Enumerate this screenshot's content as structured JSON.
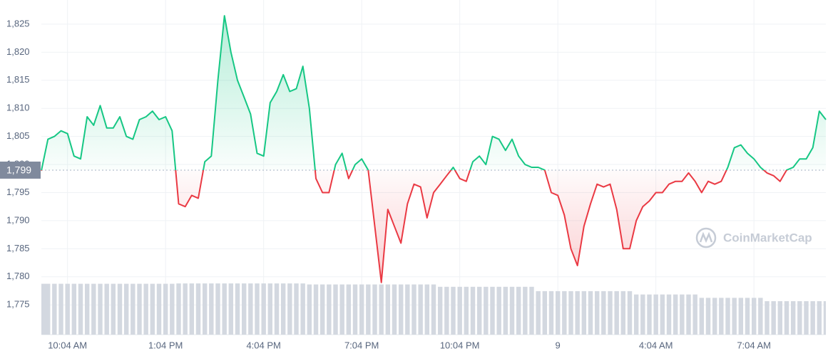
{
  "chart_data": {
    "type": "line",
    "watermark": "CoinMarketCap",
    "categories": [
      null,
      null,
      null,
      null,
      "10:04 AM",
      null,
      null,
      null,
      null,
      null,
      null,
      null,
      null,
      null,
      null,
      null,
      null,
      null,
      null,
      "1:04 PM",
      null,
      null,
      null,
      null,
      null,
      null,
      null,
      null,
      null,
      null,
      null,
      null,
      null,
      null,
      "4:04 PM",
      null,
      null,
      null,
      null,
      null,
      null,
      null,
      null,
      null,
      null,
      null,
      null,
      null,
      null,
      "7:04 PM",
      null,
      null,
      null,
      null,
      null,
      null,
      null,
      null,
      null,
      null,
      null,
      null,
      null,
      null,
      "10:04 PM",
      null,
      null,
      null,
      null,
      null,
      null,
      null,
      null,
      null,
      null,
      null,
      null,
      null,
      null,
      "9",
      null,
      null,
      null,
      null,
      null,
      null,
      null,
      null,
      null,
      null,
      null,
      null,
      null,
      null,
      "4:04 AM",
      null,
      null,
      null,
      null,
      null,
      null,
      null,
      null,
      null,
      null,
      null,
      null,
      null,
      null,
      "7:04 AM",
      null,
      null,
      null,
      null,
      null,
      null,
      null,
      null,
      null,
      null,
      null
    ],
    "series": [
      {
        "up_color": "#16c784",
        "down_color": "#ea3943",
        "values": [
          1798.9,
          1804.5,
          1805,
          1806,
          1805.5,
          1801.5,
          1801,
          1808.5,
          1807,
          1810.5,
          1806.5,
          1806.5,
          1808.5,
          1805,
          1804.5,
          1808,
          1808.5,
          1809.5,
          1808,
          1808.5,
          1806,
          1793,
          1792.5,
          1794.5,
          1794,
          1800.5,
          1801.5,
          1815,
          1826.5,
          1820,
          1815,
          1812,
          1809,
          1802,
          1801.5,
          1811,
          1813,
          1816,
          1813,
          1813.5,
          1817.5,
          1810,
          1797.5,
          1795,
          1795,
          1800,
          1802,
          1797.5,
          1800,
          1801,
          1799,
          1789,
          1779,
          1792,
          1789,
          1786,
          1793,
          1796.5,
          1796,
          1790.5,
          1795,
          1796.5,
          1798,
          1799.5,
          1797.5,
          1797,
          1800.5,
          1801.5,
          1800,
          1805,
          1804.5,
          1802.5,
          1804.5,
          1801.5,
          1800,
          1799.5,
          1799.5,
          1799,
          1795,
          1794.5,
          1791,
          1785,
          1782,
          1789,
          1793,
          1796.5,
          1796,
          1796.5,
          1792,
          1785,
          1785,
          1790,
          1792.5,
          1793.5,
          1795,
          1795,
          1796.5,
          1797,
          1797,
          1798.5,
          1797,
          1795,
          1797,
          1796.5,
          1797,
          1799.5,
          1803,
          1803.5,
          1802,
          1801,
          1799.5,
          1798.5,
          1798,
          1797,
          1799,
          1799.5,
          1801,
          1801,
          1803,
          1809.5,
          1808
        ]
      },
      {
        "axis": "y2",
        "color": "#d3d8e0",
        "values": [
          15.2,
          15.2,
          15.2,
          15.2,
          15.2,
          15.2,
          15.2,
          15.2,
          15.2,
          15.2,
          15.2,
          15.2,
          15.2,
          15.2,
          15.2,
          15.2,
          15.2,
          15.2,
          15.2,
          15.2,
          15.2,
          15.3,
          15.3,
          15.3,
          15.3,
          15.3,
          15.3,
          15.3,
          15.3,
          15.3,
          15.3,
          15.3,
          15.3,
          15.3,
          15.3,
          15.3,
          15.3,
          15.3,
          15.3,
          15.3,
          15.3,
          15,
          15,
          15,
          15,
          15,
          15,
          15,
          15,
          15,
          15,
          15,
          15,
          15,
          15,
          15,
          15,
          15,
          15,
          15,
          15,
          14.3,
          14.3,
          14.3,
          14.3,
          14.3,
          14.3,
          14.3,
          14.3,
          14.3,
          14.3,
          14.3,
          14.3,
          14.3,
          14.3,
          14.3,
          13,
          13,
          13,
          13,
          13,
          13,
          13,
          13,
          13,
          13,
          13,
          13,
          13,
          13,
          13,
          12,
          12,
          12,
          12,
          12,
          12,
          12,
          12,
          12,
          12,
          11,
          11,
          11,
          11,
          11,
          11,
          11,
          11,
          11,
          11,
          10,
          10,
          10,
          10,
          10,
          10,
          10,
          10,
          10,
          10
        ]
      }
    ],
    "baseline": {
      "value": 1799,
      "label": "1,799"
    },
    "ylim": [
      1769.7,
      1829.3
    ],
    "yticks": [
      {
        "value": 1775,
        "label": "1,775"
      },
      {
        "value": 1780,
        "label": "1,780"
      },
      {
        "value": 1785,
        "label": "1,785"
      },
      {
        "value": 1790,
        "label": "1,790"
      },
      {
        "value": 1795,
        "label": "1,795"
      },
      {
        "value": 1800,
        "label": "1,800"
      },
      {
        "value": 1805,
        "label": "1,805"
      },
      {
        "value": 1810,
        "label": "1,810"
      },
      {
        "value": 1815,
        "label": "1,815"
      },
      {
        "value": 1820,
        "label": "1,820"
      },
      {
        "value": 1825,
        "label": "1,825"
      }
    ],
    "y2lim": [
      0,
      100
    ],
    "grid": true
  }
}
